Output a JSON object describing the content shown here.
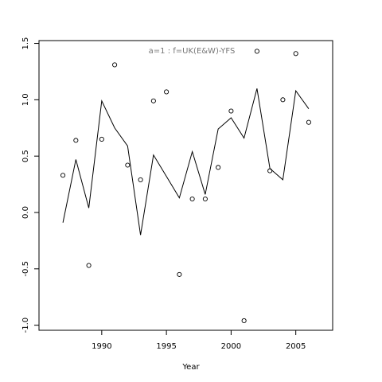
{
  "chart_data": {
    "type": "line",
    "title": "a=1 : f=UK(E&W)-YFS",
    "x_label": "Year",
    "x": [
      1987,
      1988,
      1989,
      1990,
      1991,
      1992,
      1993,
      1994,
      1995,
      1996,
      1997,
      1998,
      1999,
      2000,
      2001,
      2002,
      2003,
      2004,
      2005,
      2006
    ],
    "series": [
      {
        "mark": "line",
        "color": "#000000",
        "values": [
          -0.09,
          0.47,
          0.04,
          0.99,
          0.75,
          0.59,
          -0.2,
          0.51,
          0.32,
          0.13,
          0.54,
          0.16,
          0.74,
          0.84,
          0.66,
          1.1,
          0.39,
          0.29,
          1.08,
          0.92
        ]
      },
      {
        "mark": "point",
        "color": "#000000",
        "values": [
          0.33,
          0.64,
          -0.47,
          0.65,
          1.31,
          0.42,
          0.29,
          0.99,
          1.07,
          -0.55,
          0.12,
          0.12,
          0.4,
          0.9,
          -0.96,
          1.43,
          0.37,
          1.0,
          1.41,
          0.8
        ]
      }
    ],
    "xlim": [
      1985.15,
      2007.85
    ],
    "xticks": [
      1990,
      1995,
      2000,
      2005
    ],
    "ylim": [
      -1.045,
      1.525
    ],
    "yticks": [
      {
        "value": -1.0,
        "label": "-1.0"
      },
      -0.5,
      {
        "value": 0.0,
        "label": "0.0"
      },
      0.5,
      {
        "value": 1.0,
        "label": "1.0"
      },
      1.5
    ]
  }
}
